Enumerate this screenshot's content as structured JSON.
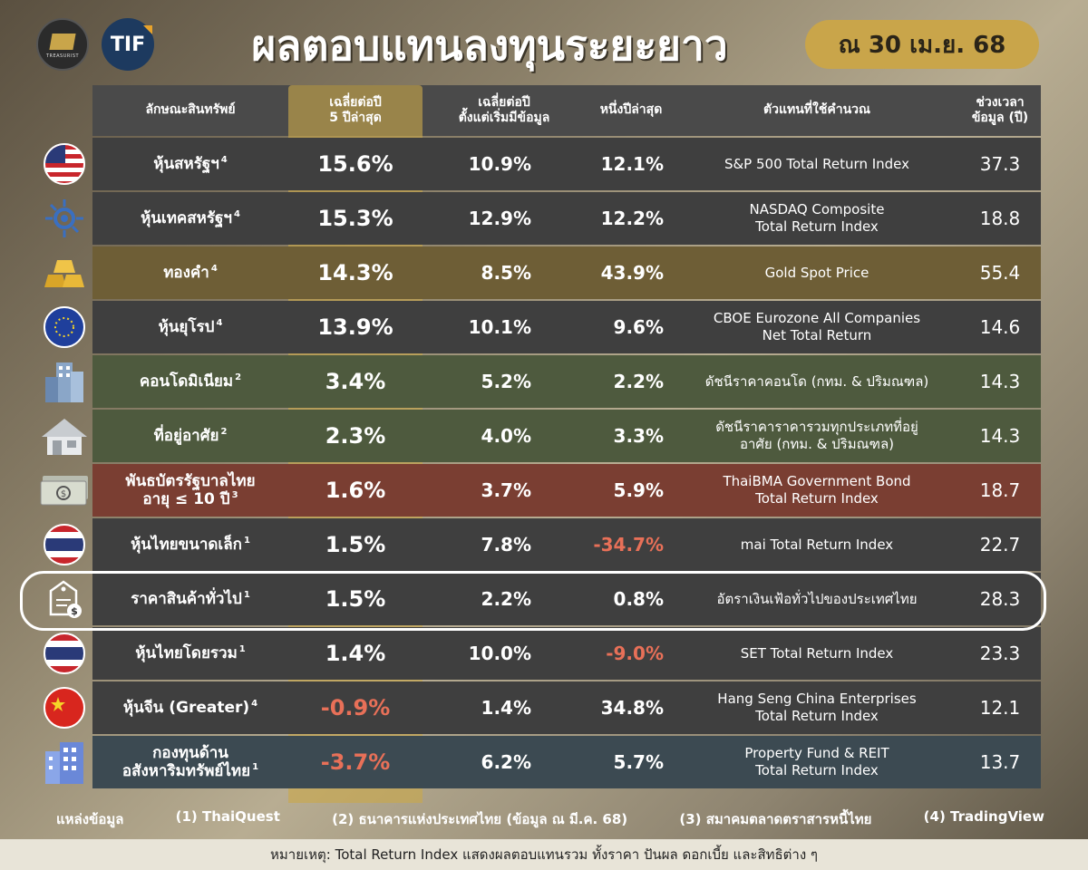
{
  "header": {
    "logo_small_text": "TREASURIST",
    "logo_tif": "TIF",
    "title": "ผลตอบแทนลงทุนระยะยาว",
    "date": "ณ 30 เม.ย. 68"
  },
  "columns": {
    "name": "ลักษณะสินทรัพย์",
    "avg5y": [
      "เฉลี่ยต่อปี",
      "5 ปีล่าสุด"
    ],
    "since_start": [
      "เฉลี่ยต่อปี",
      "ตั้งแต่เริ่มมีข้อมูล"
    ],
    "one_year": "หนึ่งปีล่าสุด",
    "index": "ตัวแทนที่ใช้คำนวณ",
    "years": [
      "ช่วงเวลา",
      "ข้อมูล (ปี)"
    ]
  },
  "rows": [
    {
      "name": [
        "หุ้นสหรัฐฯ"
      ],
      "src": "4",
      "avg5y": "15.6%",
      "since": "10.9%",
      "one_year": "12.1%",
      "index": [
        "S&P 500 Total Return Index"
      ],
      "years": "37.3",
      "icon": "us-flag-icon",
      "bg": "#3f3f3f"
    },
    {
      "name": [
        "หุ้นเทคสหรัฐฯ"
      ],
      "src": "4",
      "avg5y": "15.3%",
      "since": "12.9%",
      "one_year": "12.2%",
      "index": [
        "NASDAQ Composite",
        "Total Return Index"
      ],
      "years": "18.8",
      "icon": "tech-chip-icon",
      "bg": "#3f3f3f"
    },
    {
      "name": [
        "ทองคำ"
      ],
      "src": "4",
      "avg5y": "14.3%",
      "since": "8.5%",
      "one_year": "43.9%",
      "index": [
        "Gold Spot Price"
      ],
      "years": "55.4",
      "icon": "gold-bars-icon",
      "bg": "#6e5e36"
    },
    {
      "name": [
        "หุ้นยุโรป"
      ],
      "src": "4",
      "avg5y": "13.9%",
      "since": "10.1%",
      "one_year": "9.6%",
      "index": [
        "CBOE Eurozone All Companies",
        "Net Total Return"
      ],
      "years": "14.6",
      "icon": "eu-flag-icon",
      "bg": "#3f3f3f"
    },
    {
      "name": [
        "คอนโดมิเนียม"
      ],
      "src": "2",
      "avg5y": "3.4%",
      "since": "5.2%",
      "one_year": "2.2%",
      "index": [
        "ดัชนีราคาคอนโด (กทม. & ปริมณฑล)"
      ],
      "years": "14.3",
      "icon": "condo-building-icon",
      "bg": "#4e5a3e"
    },
    {
      "name": [
        "ที่อยู่อาศัย"
      ],
      "src": "2",
      "avg5y": "2.3%",
      "since": "4.0%",
      "one_year": "3.3%",
      "index": [
        "ดัชนีราคาราคารวมทุกประเภทที่อยู่",
        "อาศัย (กทม. & ปริมณฑล)"
      ],
      "years": "14.3",
      "icon": "house-icon",
      "bg": "#4e5a3e"
    },
    {
      "name": [
        "พันธบัตรรัฐบาลไทย",
        "อายุ ≤ 10 ปี"
      ],
      "src": "3",
      "avg5y": "1.6%",
      "since": "3.7%",
      "one_year": "5.9%",
      "index": [
        "ThaiBMA Government Bond",
        "Total Return Index"
      ],
      "years": "18.7",
      "icon": "banknote-icon",
      "bg": "#7a3e32"
    },
    {
      "name": [
        "หุ้นไทยขนาดเล็ก"
      ],
      "src": "1",
      "avg5y": "1.5%",
      "since": "7.8%",
      "one_year": "-34.7%",
      "index": [
        "mai Total Return Index"
      ],
      "years": "22.7",
      "icon": "thai-flag-icon",
      "bg": "#3f3f3f"
    },
    {
      "name": [
        "ราคาสินค้าทั่วไป"
      ],
      "src": "1",
      "avg5y": "1.5%",
      "since": "2.2%",
      "one_year": "0.8%",
      "index": [
        "อัตราเงินเฟ้อทั่วไปของประเทศไทย"
      ],
      "years": "28.3",
      "icon": "price-tag-icon",
      "bg": "#3f3f3f"
    },
    {
      "name": [
        "หุ้นไทยโดยรวม"
      ],
      "src": "1",
      "avg5y": "1.4%",
      "since": "10.0%",
      "one_year": "-9.0%",
      "index": [
        "SET Total Return Index"
      ],
      "years": "23.3",
      "icon": "thai-flag-icon",
      "bg": "#3f3f3f"
    },
    {
      "name": [
        "หุ้นจีน (Greater)"
      ],
      "src": "4",
      "avg5y": "-0.9%",
      "since": "1.4%",
      "one_year": "34.8%",
      "index": [
        "Hang Seng China Enterprises",
        "Total Return Index"
      ],
      "years": "12.1",
      "icon": "china-flag-icon",
      "bg": "#3f3f3f"
    },
    {
      "name": [
        "กองทุนด้าน",
        "อสังหาริมทรัพย์ไทย"
      ],
      "src": "1",
      "avg5y": "-3.7%",
      "since": "6.2%",
      "one_year": "5.7%",
      "index": [
        "Property Fund & REIT",
        "Total Return Index"
      ],
      "years": "13.7",
      "icon": "office-building-icon",
      "bg": "#3c4a52"
    }
  ],
  "sources": {
    "label": "แหล่งข้อมูล",
    "s1": "(1) ThaiQuest",
    "s2": "(2) ธนาคารแห่งประเทศไทย (ข้อมูล ณ มี.ค. 68)",
    "s3": "(3) สมาคมตลาดตราสารหนี้ไทย",
    "s4": "(4) TradingView"
  },
  "note": "หมายเหตุ: Total Return Index แสดงผลตอบแทนรวม ทั้งราคา ปันผล ดอกเบี้ย และสิทธิต่าง ๆ"
}
